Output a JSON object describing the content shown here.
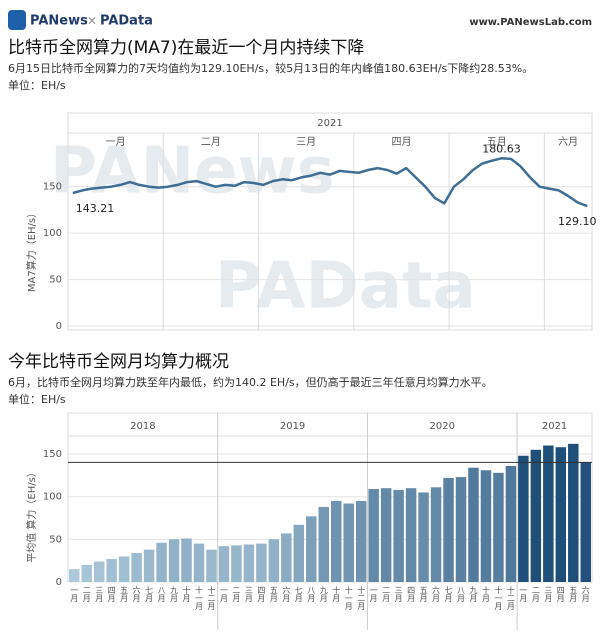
{
  "header": {
    "brand": "PANews",
    "cross": "×",
    "brand2": "PAData",
    "site": "www.PANewsLab.com"
  },
  "watermarks": [
    "PANews",
    "PAData"
  ],
  "chart_data": [
    {
      "type": "line",
      "title": "比特币全网算力(MA7)在最近一个月内持续下降",
      "subtitle": "6月15日比特币全网算力的7天均值约为129.10EH/s，较5月13日的年内峰值180.63EH/s下降约28.53%。",
      "unit": "单位：EH/s",
      "year": "2021",
      "y_label": "MA7算力（EH/s）",
      "color": "#3f6d93",
      "ylim": [
        0,
        210
      ],
      "yticks": [
        0,
        50,
        100,
        150
      ],
      "grid": true,
      "months": [
        {
          "label": "一月",
          "values": [
            143.21,
            146,
            148,
            149,
            150,
            152,
            155,
            152,
            150,
            149
          ],
          "value_labels": [
            "143.21",
            null,
            null,
            null,
            null,
            null,
            null,
            null,
            null,
            null
          ]
        },
        {
          "label": "二月",
          "values": [
            150,
            152,
            155,
            156,
            153,
            150,
            152,
            151,
            155,
            154
          ],
          "value_labels": [
            null,
            null,
            null,
            null,
            null,
            null,
            null,
            null,
            null,
            null
          ]
        },
        {
          "label": "三月",
          "values": [
            152,
            156,
            158,
            157,
            160,
            162,
            165,
            163,
            167,
            166
          ],
          "value_labels": [
            null,
            null,
            null,
            null,
            null,
            null,
            null,
            null,
            null,
            null
          ]
        },
        {
          "label": "四月",
          "values": [
            165,
            168,
            170,
            168,
            164,
            170,
            160,
            150,
            138,
            132
          ],
          "value_labels": [
            null,
            null,
            null,
            null,
            null,
            null,
            null,
            null,
            null,
            null
          ]
        },
        {
          "label": "五月",
          "values": [
            150,
            158,
            168,
            175,
            178,
            180.63,
            180,
            172,
            160,
            150
          ],
          "value_labels": [
            null,
            null,
            null,
            null,
            null,
            "180.63",
            null,
            null,
            null,
            null
          ]
        },
        {
          "label": "六月",
          "values": [
            148,
            146,
            140,
            133,
            129.1
          ],
          "value_labels": [
            null,
            null,
            null,
            null,
            "129.10"
          ]
        }
      ]
    },
    {
      "type": "bar",
      "title": "今年比特币全网月均算力概况",
      "subtitle": "6月，比特币全网月均算力跌至年内最低，约为140.2 EH/s，但仍高于最近三年任意月均算力水平。",
      "unit": "单位：EH/s",
      "y_label": "平均值 算力（EH/s）",
      "color_range": [
        "#b7d2e3",
        "#1f4e79"
      ],
      "ylim": [
        0,
        170
      ],
      "yticks": [
        0,
        50,
        100,
        150
      ],
      "grid": true,
      "reference_line": 140.2,
      "groups": [
        {
          "name": "2018",
          "categories": [
            "一月",
            "二月",
            "三月",
            "四月",
            "五月",
            "六月",
            "七月",
            "八月",
            "九月",
            "十月",
            "十一月",
            "十二月"
          ],
          "values": [
            15,
            20,
            24,
            27,
            30,
            34,
            38,
            46,
            50,
            51,
            45,
            38
          ]
        },
        {
          "name": "2019",
          "categories": [
            "一月",
            "二月",
            "三月",
            "四月",
            "五月",
            "六月",
            "七月",
            "八月",
            "九月",
            "十月",
            "十一月",
            "十二月"
          ],
          "values": [
            42,
            43,
            44,
            45,
            50,
            57,
            67,
            77,
            88,
            95,
            92,
            95
          ]
        },
        {
          "name": "2020",
          "categories": [
            "一月",
            "二月",
            "三月",
            "四月",
            "五月",
            "六月",
            "七月",
            "八月",
            "九月",
            "十月",
            "十一月",
            "十二月"
          ],
          "values": [
            109,
            110,
            108,
            110,
            105,
            111,
            122,
            123,
            134,
            131,
            128,
            136
          ]
        },
        {
          "name": "2021",
          "categories": [
            "一月",
            "二月",
            "三月",
            "四月",
            "五月",
            "六月"
          ],
          "values": [
            148,
            155,
            160,
            158,
            162,
            140.2
          ]
        }
      ]
    }
  ]
}
